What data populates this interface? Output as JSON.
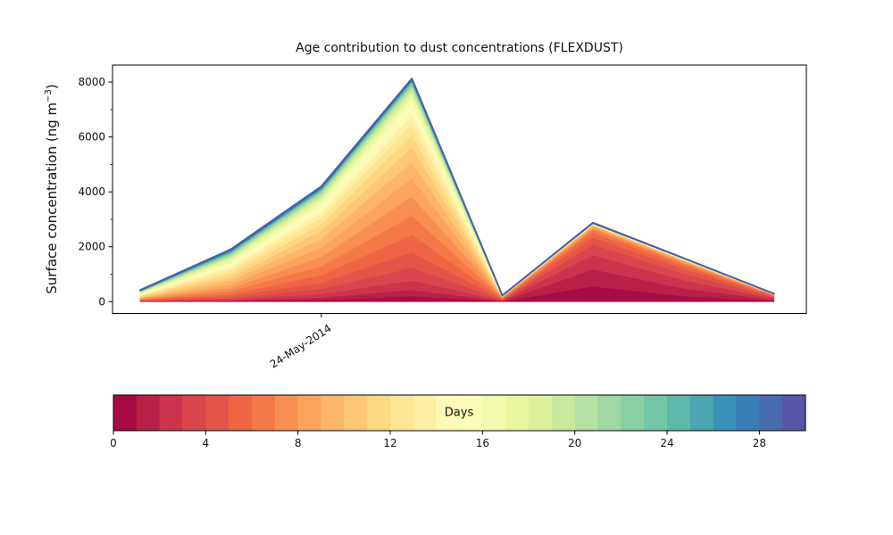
{
  "chart_data": {
    "type": "area",
    "variant": "stacked-age-spectrum",
    "title": "Age contribution to dust concentrations (FLEXDUST)",
    "ylabel": "Surface concentration (ng m⁻³)",
    "ylabel_prefix": "Surface concentration (ng m",
    "ylabel_sup": "−3",
    "ylabel_suffix": ")",
    "xlabel": "",
    "n_points": 8,
    "x_tick": {
      "index": 2,
      "label": "24-May-2014"
    },
    "yticks": [
      0,
      2000,
      4000,
      6000,
      8000
    ],
    "y_minor_ticks": [
      1000,
      3000,
      5000,
      7000
    ],
    "ylim": [
      -430,
      8620
    ],
    "grid": false,
    "legend_position": "colorbar-below",
    "totals": [
      420,
      1905,
      4200,
      8130,
      225,
      2876,
      1589,
      288
    ],
    "total_line_color": "#4a5fa8",
    "series": [
      {
        "name": "age-day-1",
        "day": 1,
        "color": "#a70b44",
        "values": [
          6,
          15,
          60,
          200,
          10,
          560,
          200,
          30
        ]
      },
      {
        "name": "age-day-2",
        "day": 2,
        "color": "#b92048",
        "values": [
          8,
          22,
          90,
          230,
          14,
          620,
          280,
          42
        ]
      },
      {
        "name": "age-day-3",
        "day": 3,
        "color": "#cc344d",
        "values": [
          10,
          34,
          130,
          340,
          18,
          520,
          300,
          40
        ]
      },
      {
        "name": "age-day-4",
        "day": 4,
        "color": "#da464d",
        "values": [
          12,
          50,
          180,
          470,
          21,
          380,
          250,
          38
        ]
      },
      {
        "name": "age-day-5",
        "day": 5,
        "color": "#e45549",
        "values": [
          14,
          68,
          230,
          560,
          23,
          260,
          175,
          36
        ]
      },
      {
        "name": "age-day-6",
        "day": 6,
        "color": "#ef6544",
        "values": [
          16,
          86,
          280,
          640,
          23,
          170,
          115,
          26
        ]
      },
      {
        "name": "age-day-7",
        "day": 7,
        "color": "#f57848",
        "values": [
          18,
          104,
          320,
          690,
          21,
          110,
          75,
          18
        ]
      },
      {
        "name": "age-day-8",
        "day": 8,
        "color": "#f88e52",
        "values": [
          20,
          118,
          340,
          700,
          18,
          70,
          50,
          12
        ]
      },
      {
        "name": "age-day-9",
        "day": 9,
        "color": "#fca35c",
        "values": [
          22,
          128,
          340,
          660,
          15,
          45,
          33,
          8
        ]
      },
      {
        "name": "age-day-10",
        "day": 10,
        "color": "#fdb668",
        "values": [
          24,
          132,
          320,
          590,
          12,
          30,
          23,
          6
        ]
      },
      {
        "name": "age-day-11",
        "day": 11,
        "color": "#fdc776",
        "values": [
          25,
          132,
          290,
          540,
          9,
          20,
          16,
          4
        ]
      },
      {
        "name": "age-day-12",
        "day": 12,
        "color": "#fed784",
        "values": [
          25,
          126,
          255,
          460,
          7,
          14,
          12,
          3
        ]
      },
      {
        "name": "age-day-13",
        "day": 13,
        "color": "#fee594",
        "values": [
          24,
          117,
          220,
          385,
          6,
          10,
          9,
          2
        ]
      },
      {
        "name": "age-day-14",
        "day": 14,
        "color": "#feefa5",
        "values": [
          23,
          107,
          190,
          320,
          5,
          8,
          7,
          2
        ]
      },
      {
        "name": "age-day-15",
        "day": 15,
        "color": "#fef9b6",
        "values": [
          22,
          96,
          160,
          265,
          4,
          6,
          5,
          1
        ]
      },
      {
        "name": "age-day-16",
        "day": 16,
        "color": "#fafdb8",
        "values": [
          20,
          85,
          135,
          215,
          3,
          5,
          4,
          1
        ]
      },
      {
        "name": "age-day-17",
        "day": 17,
        "color": "#f2faab",
        "values": [
          18,
          75,
          115,
          175,
          2,
          4,
          3,
          1
        ]
      },
      {
        "name": "age-day-18",
        "day": 18,
        "color": "#eaf69e",
        "values": [
          16,
          65,
          95,
          140,
          2,
          3,
          3,
          1
        ]
      },
      {
        "name": "age-day-19",
        "day": 19,
        "color": "#dcf19a",
        "values": [
          14,
          56,
          80,
          112,
          1,
          3,
          2,
          1
        ]
      },
      {
        "name": "age-day-20",
        "day": 20,
        "color": "#c8e99e",
        "values": [
          12,
          48,
          65,
          90,
          1,
          2,
          2,
          1
        ]
      },
      {
        "name": "age-day-21",
        "day": 21,
        "color": "#b5e1a2",
        "values": [
          10,
          41,
          55,
          72,
          1,
          2,
          2,
          1
        ]
      },
      {
        "name": "age-day-22",
        "day": 22,
        "color": "#9fd8a4",
        "values": [
          9,
          35,
          45,
          58,
          1,
          2,
          1,
          1
        ]
      },
      {
        "name": "age-day-23",
        "day": 23,
        "color": "#88cfa4",
        "values": [
          8,
          30,
          38,
          46,
          1,
          1,
          1,
          1
        ]
      },
      {
        "name": "age-day-24",
        "day": 24,
        "color": "#71c6a5",
        "values": [
          7,
          25,
          32,
          37,
          1,
          1,
          1,
          1
        ]
      },
      {
        "name": "age-day-25",
        "day": 25,
        "color": "#5db8a9",
        "values": [
          6,
          21,
          26,
          29,
          1,
          1,
          1,
          1
        ]
      },
      {
        "name": "age-day-26",
        "day": 26,
        "color": "#4ca5b1",
        "values": [
          5,
          18,
          22,
          23,
          1,
          1,
          1,
          1
        ]
      },
      {
        "name": "age-day-27",
        "day": 27,
        "color": "#3a92b9",
        "values": [
          5,
          15,
          18,
          18,
          1,
          1,
          1,
          1
        ]
      },
      {
        "name": "age-day-28",
        "day": 28,
        "color": "#397eb8",
        "values": [
          4,
          13,
          15,
          14,
          1,
          1,
          1,
          1
        ]
      },
      {
        "name": "age-day-29",
        "day": 29,
        "color": "#486baf",
        "values": [
          4,
          11,
          12,
          11,
          1,
          1,
          1,
          1
        ]
      },
      {
        "name": "age-day-30",
        "day": 30,
        "color": "#5657a6",
        "values": [
          13,
          32,
          42,
          40,
          1,
          25,
          15,
          6
        ]
      }
    ]
  },
  "colorbar": {
    "label": "Days",
    "min": 0,
    "max": 30,
    "ticks": [
      0,
      4,
      8,
      12,
      16,
      20,
      24,
      28
    ]
  }
}
